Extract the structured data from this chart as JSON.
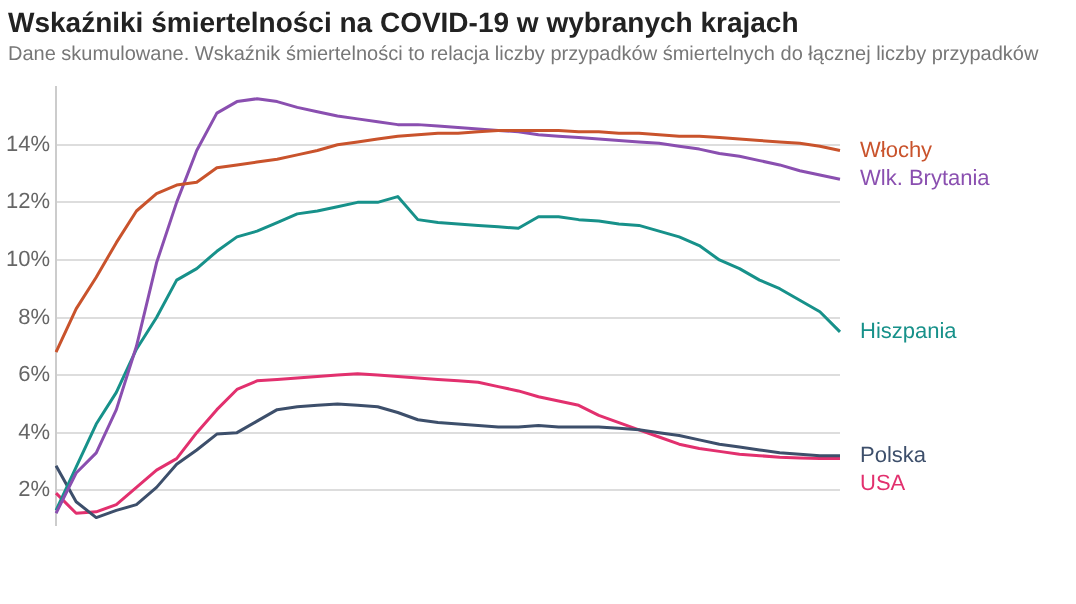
{
  "chart_data": {
    "type": "line",
    "title": "Wskaźniki śmiertelności na COVID-19 w wybranych krajach",
    "subtitle": "Dane skumulowane. Wskaźnik śmiertelności to relacja liczby przypadków śmiertelnych do łącznej liczby przypadków",
    "categories": [
      null,
      null,
      null,
      null,
      null,
      null,
      null,
      null,
      null,
      null,
      null,
      null,
      null,
      null,
      null,
      null,
      null,
      null,
      null,
      null,
      null,
      null,
      null,
      null,
      null,
      null,
      null,
      null,
      null,
      null,
      null,
      null,
      null,
      null,
      null,
      null,
      null,
      null,
      null,
      null
    ],
    "series": [
      {
        "name": "Włochy",
        "color": "#c9532c",
        "values": [
          6.8,
          8.3,
          9.4,
          10.6,
          11.7,
          12.3,
          12.6,
          12.7,
          13.2,
          13.3,
          13.4,
          13.5,
          13.65,
          13.8,
          14.0,
          14.1,
          14.2,
          14.3,
          14.35,
          14.4,
          14.4,
          14.45,
          14.5,
          14.5,
          14.5,
          14.5,
          14.45,
          14.45,
          14.4,
          14.4,
          14.35,
          14.3,
          14.3,
          14.25,
          14.2,
          14.15,
          14.1,
          14.05,
          13.95,
          13.8
        ]
      },
      {
        "name": "Wlk. Brytania",
        "color": "#8a4fb0",
        "values": [
          1.2,
          2.6,
          3.3,
          4.8,
          7.0,
          9.9,
          12.0,
          13.8,
          15.1,
          15.5,
          15.6,
          15.5,
          15.3,
          15.15,
          15.0,
          14.9,
          14.8,
          14.7,
          14.7,
          14.65,
          14.6,
          14.55,
          14.5,
          14.45,
          14.35,
          14.3,
          14.25,
          14.2,
          14.15,
          14.1,
          14.05,
          13.95,
          13.85,
          13.7,
          13.6,
          13.45,
          13.3,
          13.1,
          12.95,
          12.8
        ]
      },
      {
        "name": "Hiszpania",
        "color": "#17918a",
        "values": [
          1.3,
          2.8,
          4.3,
          5.4,
          6.9,
          8.0,
          9.3,
          9.7,
          10.3,
          10.8,
          11.0,
          11.3,
          11.6,
          11.7,
          11.85,
          12.0,
          12.0,
          12.2,
          11.4,
          11.3,
          11.25,
          11.2,
          11.15,
          11.1,
          11.5,
          11.5,
          11.4,
          11.35,
          11.25,
          11.2,
          11.0,
          10.8,
          10.5,
          10.0,
          9.7,
          9.3,
          9.0,
          8.6,
          8.2,
          7.5
        ]
      },
      {
        "name": "Polska",
        "color": "#3d4f6b",
        "values": [
          2.85,
          1.6,
          1.05,
          1.3,
          1.5,
          2.1,
          2.9,
          3.4,
          3.95,
          4.0,
          4.4,
          4.8,
          4.9,
          4.95,
          5.0,
          4.95,
          4.9,
          4.7,
          4.45,
          4.35,
          4.3,
          4.25,
          4.2,
          4.2,
          4.25,
          4.2,
          4.2,
          4.2,
          4.15,
          4.1,
          4.0,
          3.9,
          3.75,
          3.6,
          3.5,
          3.4,
          3.3,
          3.25,
          3.2,
          3.2
        ]
      },
      {
        "name": "USA",
        "color": "#e2306e",
        "values": [
          1.9,
          1.2,
          1.25,
          1.5,
          2.1,
          2.7,
          3.1,
          4.0,
          4.8,
          5.5,
          5.8,
          5.85,
          5.9,
          5.95,
          6.0,
          6.05,
          6.0,
          5.95,
          5.9,
          5.85,
          5.8,
          5.75,
          5.6,
          5.45,
          5.25,
          5.1,
          4.95,
          4.6,
          4.35,
          4.1,
          3.85,
          3.6,
          3.45,
          3.35,
          3.25,
          3.2,
          3.15,
          3.12,
          3.1,
          3.1
        ]
      }
    ],
    "ylim": [
      0.8,
      16
    ],
    "yticks": [
      {
        "value": 2,
        "label": "2%"
      },
      {
        "value": 4,
        "label": "4%"
      },
      {
        "value": 6,
        "label": "6%"
      },
      {
        "value": 8,
        "label": "8%"
      },
      {
        "value": 10,
        "label": "10%"
      },
      {
        "value": 12,
        "label": "12%"
      },
      {
        "value": 14,
        "label": "14%"
      }
    ],
    "grid": "y",
    "legend": "right",
    "tick_labels": "y",
    "marker": "none",
    "line_style": "solid"
  }
}
